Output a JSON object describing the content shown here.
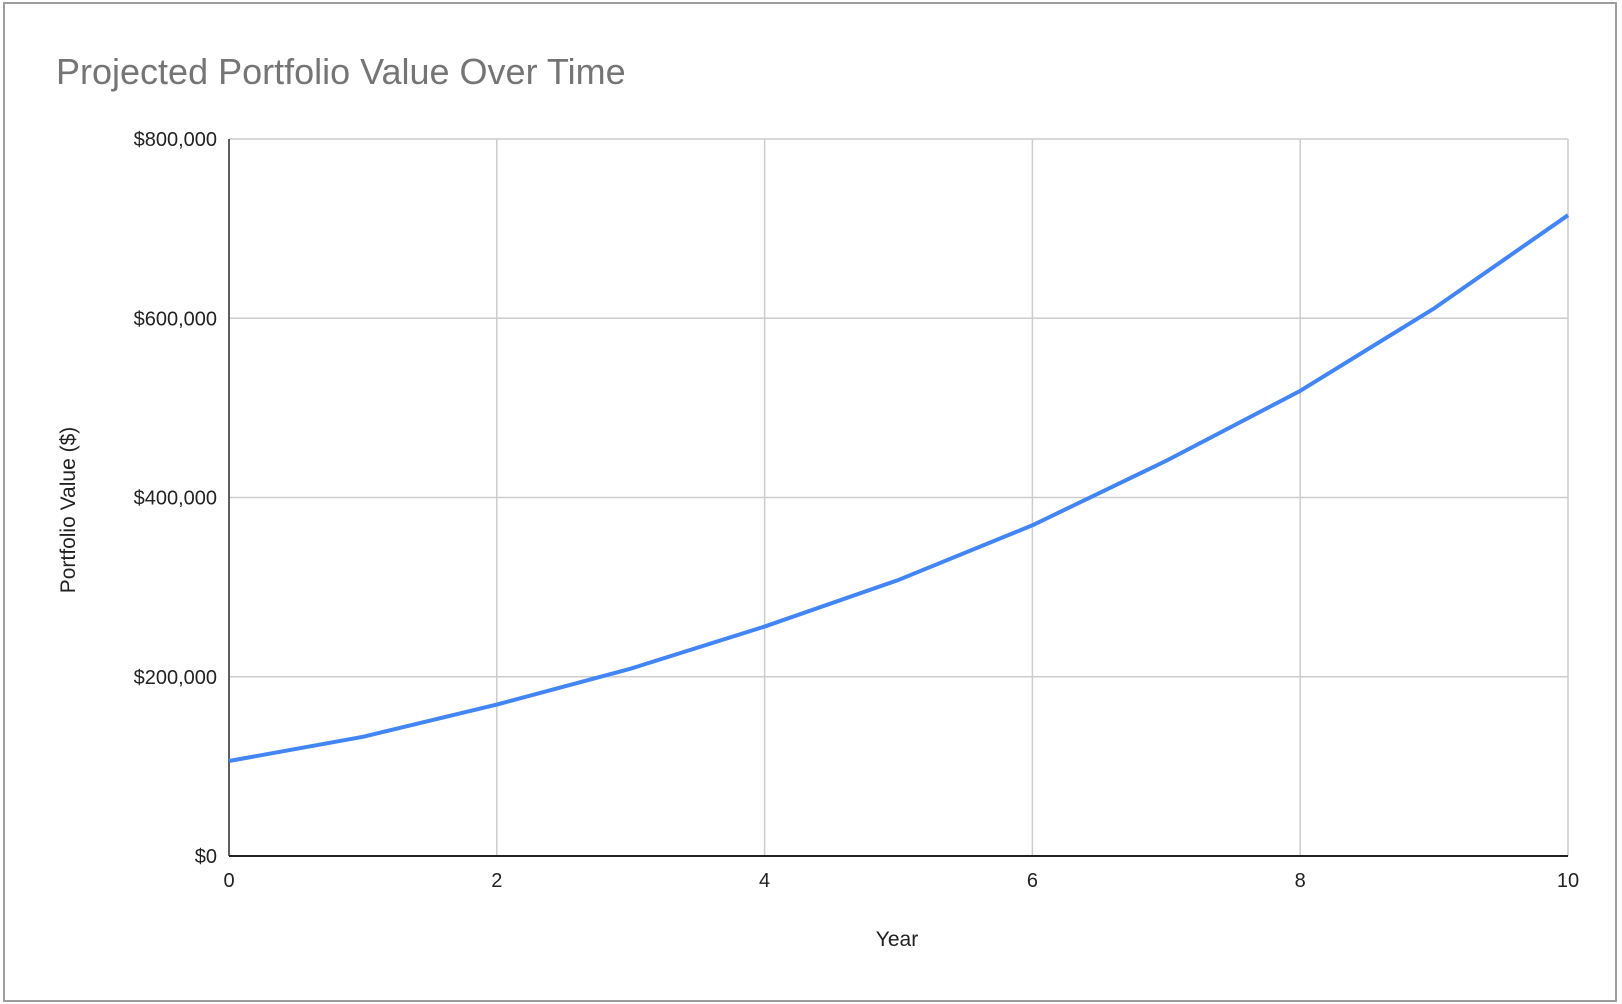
{
  "chart_data": {
    "type": "line",
    "title": "Projected Portfolio Value Over Time",
    "x_label": "Year",
    "y_label": "Portfolio Value ($)",
    "x": [
      0,
      1,
      2,
      3,
      4,
      5,
      6,
      7,
      8,
      9,
      10
    ],
    "series": [
      {
        "name": "Portfolio Value ($)",
        "color": "#4285f4",
        "values": [
          106000,
          133000,
          169000,
          209000,
          256000,
          308000,
          369000,
          441000,
          519000,
          611000,
          715000
        ]
      }
    ],
    "xlim": [
      0,
      10
    ],
    "xticks": [
      0,
      2,
      4,
      6,
      8,
      10
    ],
    "ylim": [
      0,
      800000
    ],
    "yticks": [
      {
        "value": 0,
        "label": "$0"
      },
      {
        "value": 200000,
        "label": "$200,000"
      },
      {
        "value": 400000,
        "label": "$400,000"
      },
      {
        "value": 600000,
        "label": "$600,000"
      },
      {
        "value": 800000,
        "label": "$800,000"
      }
    ],
    "grid": true
  }
}
